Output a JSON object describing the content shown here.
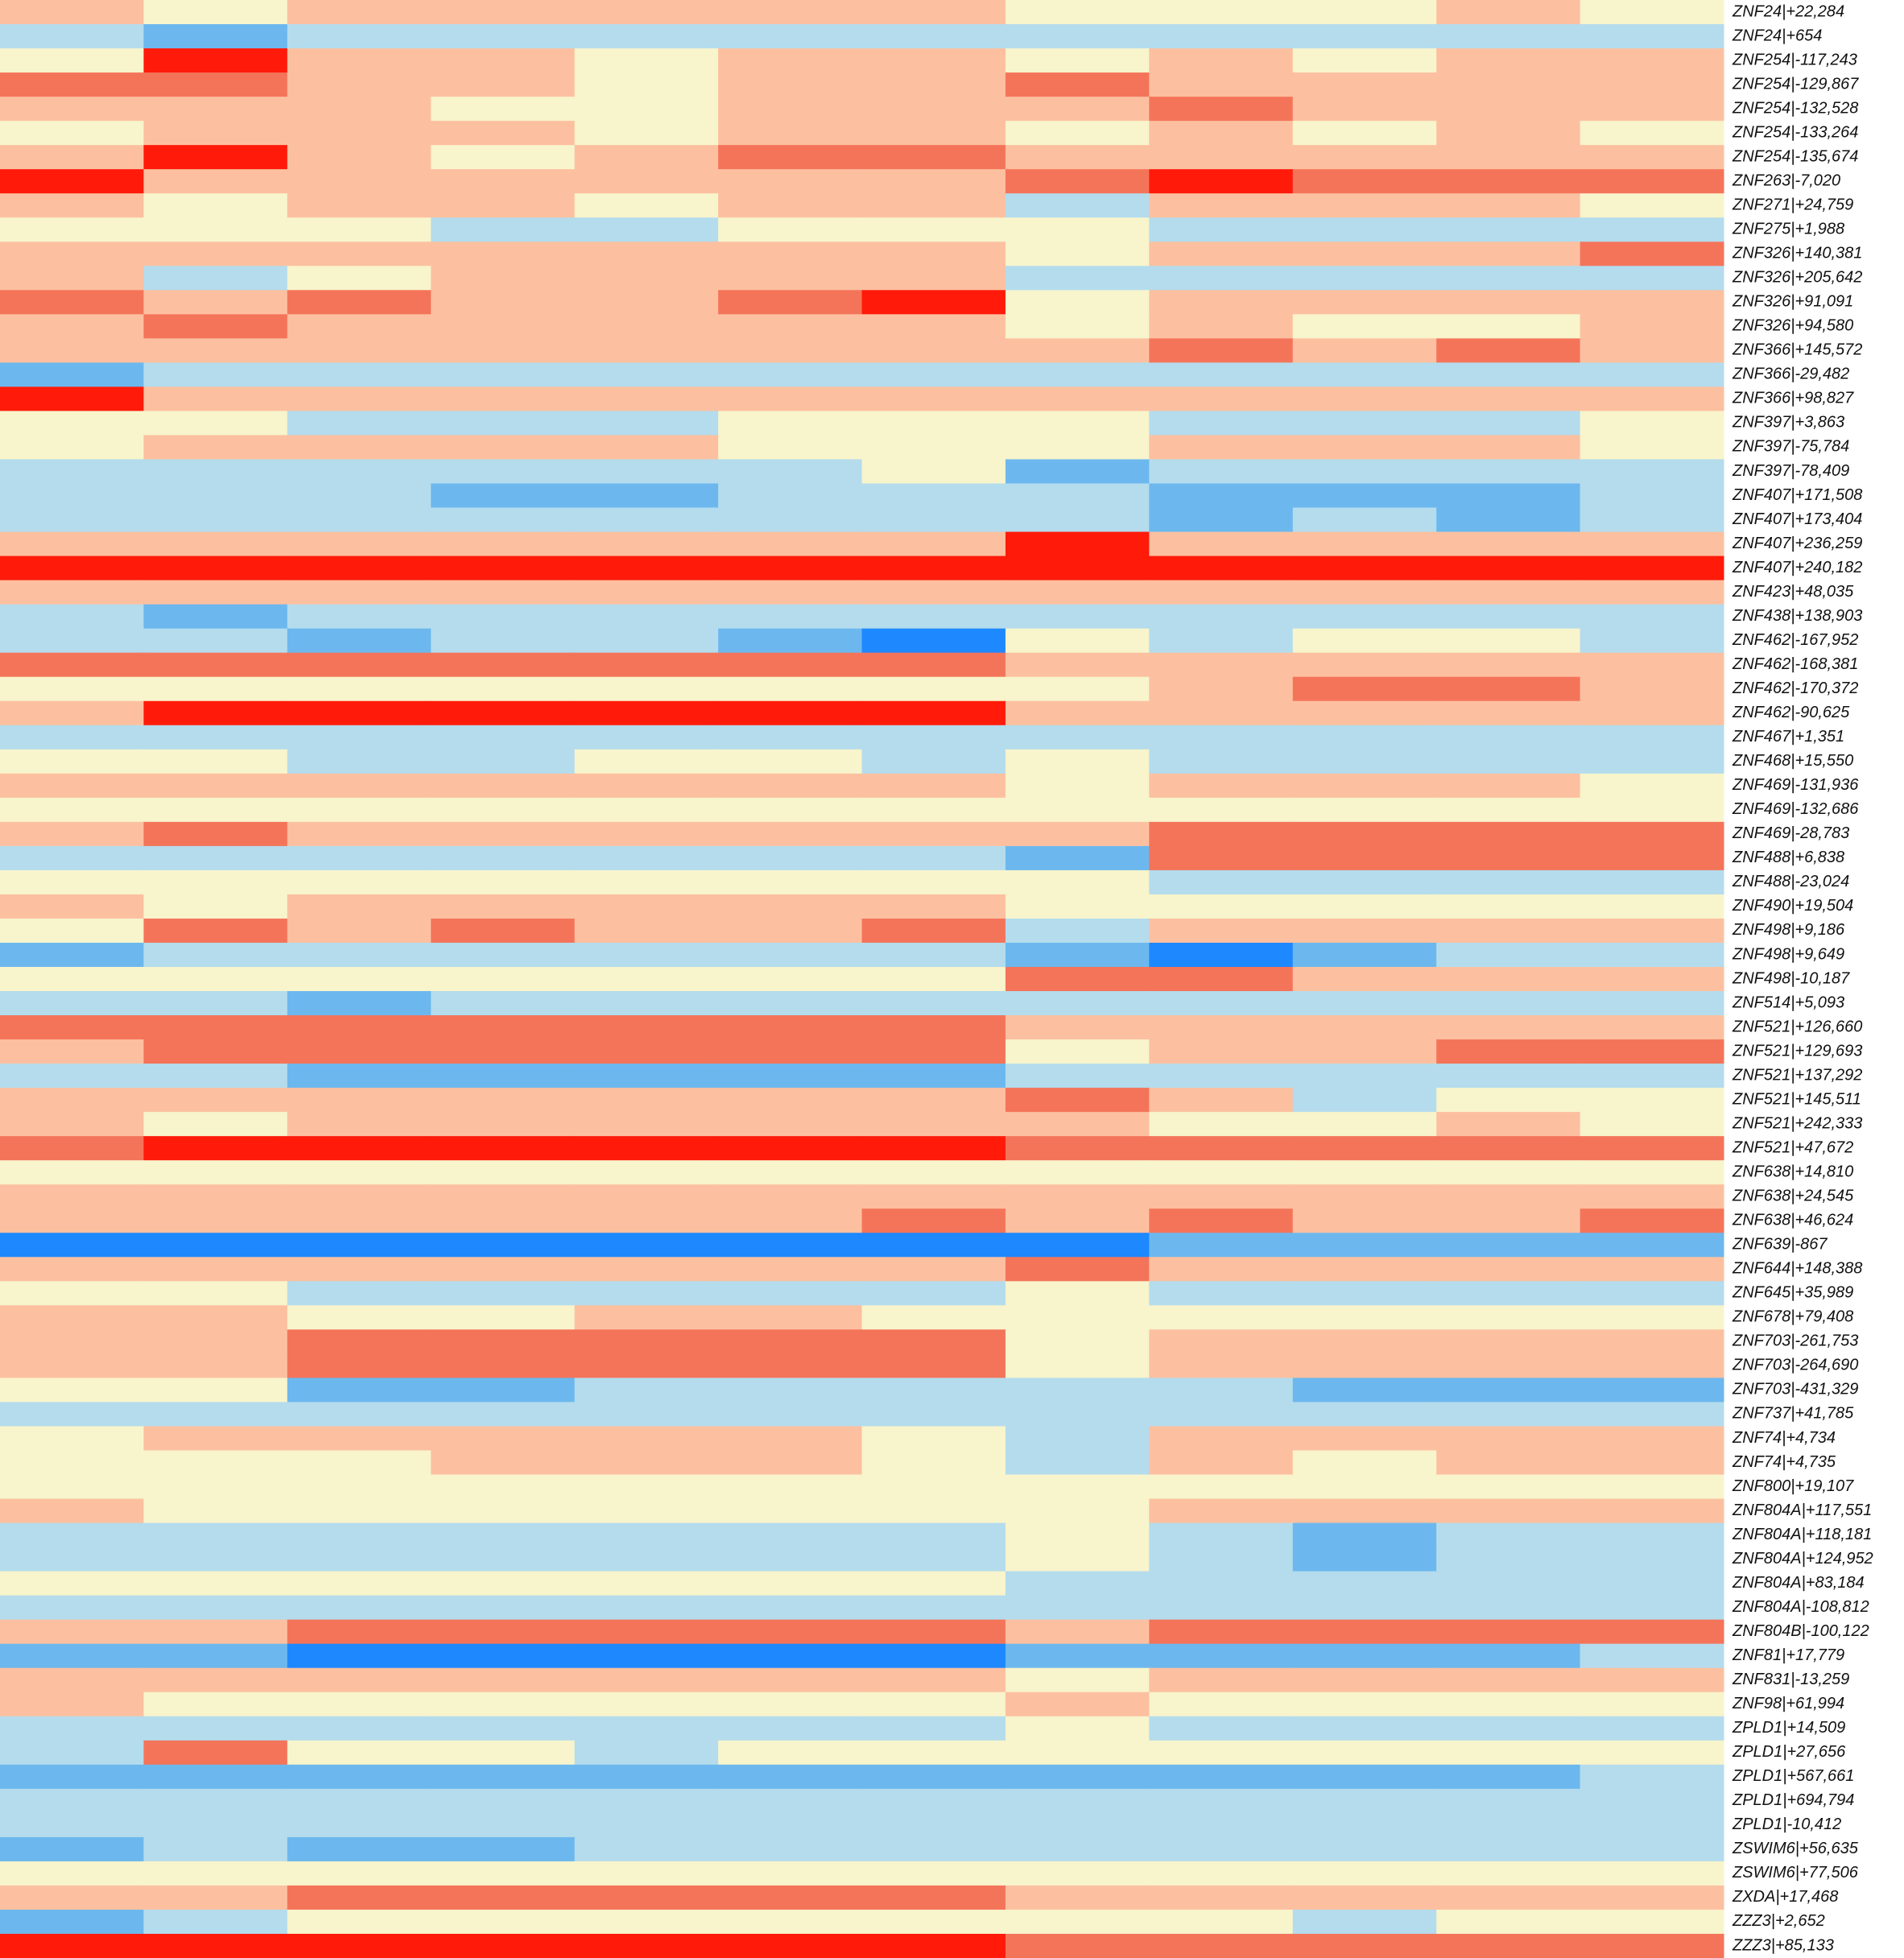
{
  "chart_data": {
    "type": "heatmap",
    "clim": [
      -3,
      3
    ],
    "colorscale": [
      "#1e88ff",
      "#6cb8ee",
      "#b4dced",
      "#f8f4cc",
      "#fcc0a0",
      "#f4745a",
      "#ff1a0a"
    ],
    "rows": [
      "ZNF24|+22,284",
      "ZNF24|+654",
      "ZNF254|-117,243",
      "ZNF254|-129,867",
      "ZNF254|-132,528",
      "ZNF254|-133,264",
      "ZNF254|-135,674",
      "ZNF263|-7,020",
      "ZNF271|+24,759",
      "ZNF275|+1,988",
      "ZNF326|+140,381",
      "ZNF326|+205,642",
      "ZNF326|+91,091",
      "ZNF326|+94,580",
      "ZNF366|+145,572",
      "ZNF366|-29,482",
      "ZNF366|+98,827",
      "ZNF397|+3,863",
      "ZNF397|-75,784",
      "ZNF397|-78,409",
      "ZNF407|+171,508",
      "ZNF407|+173,404",
      "ZNF407|+236,259",
      "ZNF407|+240,182",
      "ZNF423|+48,035",
      "ZNF438|+138,903",
      "ZNF462|-167,952",
      "ZNF462|-168,381",
      "ZNF462|-170,372",
      "ZNF462|-90,625",
      "ZNF467|+1,351",
      "ZNF468|+15,550",
      "ZNF469|-131,936",
      "ZNF469|-132,686",
      "ZNF469|-28,783",
      "ZNF488|+6,838",
      "ZNF488|-23,024",
      "ZNF490|+19,504",
      "ZNF498|+9,186",
      "ZNF498|+9,649",
      "ZNF498|-10,187",
      "ZNF514|+5,093",
      "ZNF521|+126,660",
      "ZNF521|+129,693",
      "ZNF521|+137,292",
      "ZNF521|+145,511",
      "ZNF521|+242,333",
      "ZNF521|+47,672",
      "ZNF638|+14,810",
      "ZNF638|+24,545",
      "ZNF638|+46,624",
      "ZNF639|-867",
      "ZNF644|+148,388",
      "ZNF645|+35,989",
      "ZNF678|+79,408",
      "ZNF703|-261,753",
      "ZNF703|-264,690",
      "ZNF703|-431,329",
      "ZNF737|+41,785",
      "ZNF74|+4,734",
      "ZNF74|+4,735",
      "ZNF800|+19,107",
      "ZNF804A|+117,551",
      "ZNF804A|+118,181",
      "ZNF804A|+124,952",
      "ZNF804A|+83,184",
      "ZNF804A|-108,812",
      "ZNF804B|-100,122",
      "ZNF81|+17,779",
      "ZNF831|-13,259",
      "ZNF98|+61,994",
      "ZPLD1|+14,509",
      "ZPLD1|+27,656",
      "ZPLD1|+567,661",
      "ZPLD1|+694,794",
      "ZPLD1|-10,412",
      "ZSWIM6|+56,635",
      "ZSWIM6|+77,506",
      "ZXDA|+17,468",
      "ZZZ3|+2,652",
      "ZZZ3|+85,133"
    ],
    "z": [
      [
        1,
        0,
        1,
        1,
        1,
        1,
        1,
        0,
        0,
        0,
        1,
        0
      ],
      [
        -1,
        -2,
        -1,
        -1,
        -1,
        -1,
        -1,
        -1,
        -1,
        -1,
        -1,
        -1
      ],
      [
        0,
        3,
        1,
        1,
        0,
        1,
        1,
        0,
        1,
        0,
        1,
        1
      ],
      [
        2,
        2,
        1,
        1,
        0,
        1,
        1,
        2,
        1,
        1,
        1,
        1
      ],
      [
        1,
        1,
        1,
        0,
        0,
        1,
        1,
        1,
        2,
        1,
        1,
        1
      ],
      [
        0,
        1,
        1,
        1,
        0,
        1,
        1,
        0,
        1,
        0,
        1,
        0
      ],
      [
        1,
        3,
        1,
        0,
        1,
        2,
        2,
        1,
        1,
        1,
        1,
        1
      ],
      [
        3,
        1,
        1,
        1,
        1,
        1,
        1,
        2,
        3,
        2,
        2,
        2
      ],
      [
        1,
        0,
        1,
        1,
        0,
        1,
        1,
        -1,
        1,
        1,
        1,
        0
      ],
      [
        0,
        0,
        0,
        -1,
        -1,
        0,
        0,
        0,
        -1,
        -1,
        -1,
        -1
      ],
      [
        1,
        1,
        1,
        1,
        1,
        1,
        1,
        0,
        1,
        1,
        1,
        2
      ],
      [
        1,
        -1,
        0,
        1,
        1,
        1,
        1,
        -1,
        -1,
        -1,
        -1,
        -1
      ],
      [
        2,
        1,
        2,
        1,
        1,
        2,
        3,
        0,
        1,
        1,
        1,
        1
      ],
      [
        1,
        2,
        1,
        1,
        1,
        1,
        1,
        0,
        1,
        0,
        0,
        1
      ],
      [
        1,
        1,
        1,
        1,
        1,
        1,
        1,
        1,
        2,
        1,
        2,
        1
      ],
      [
        -2,
        -1,
        -1,
        -1,
        -1,
        -1,
        -1,
        -1,
        -1,
        -1,
        -1,
        -1
      ],
      [
        3,
        1,
        1,
        1,
        1,
        1,
        1,
        1,
        1,
        1,
        1,
        1
      ],
      [
        0,
        0,
        -1,
        -1,
        -1,
        0,
        0,
        0,
        -1,
        -1,
        -1,
        0
      ],
      [
        0,
        1,
        1,
        1,
        1,
        0,
        0,
        0,
        1,
        1,
        1,
        0
      ],
      [
        -1,
        -1,
        -1,
        -1,
        -1,
        -1,
        0,
        -2,
        -1,
        -1,
        -1,
        -1
      ],
      [
        -1,
        -1,
        -1,
        -2,
        -2,
        -1,
        -1,
        -1,
        -2,
        -2,
        -2,
        -1
      ],
      [
        -1,
        -1,
        -1,
        -1,
        -1,
        -1,
        -1,
        -1,
        -2,
        -1,
        -2,
        -1
      ],
      [
        1,
        1,
        1,
        1,
        1,
        1,
        1,
        3,
        1,
        1,
        1,
        1
      ],
      [
        3,
        3,
        3,
        3,
        3,
        3,
        3,
        3,
        3,
        3,
        3,
        3
      ],
      [
        1,
        1,
        1,
        1,
        1,
        1,
        1,
        1,
        1,
        1,
        1,
        1
      ],
      [
        -1,
        -2,
        -1,
        -1,
        -1,
        -1,
        -1,
        -1,
        -1,
        -1,
        -1,
        -1
      ],
      [
        -1,
        -1,
        -2,
        -1,
        -1,
        -2,
        -3,
        0,
        -1,
        0,
        0,
        -1
      ],
      [
        2,
        2,
        2,
        2,
        2,
        2,
        2,
        1,
        1,
        1,
        1,
        1
      ],
      [
        0,
        0,
        0,
        0,
        0,
        0,
        0,
        0,
        1,
        2,
        2,
        1
      ],
      [
        1,
        3,
        3,
        3,
        3,
        3,
        3,
        1,
        1,
        1,
        1,
        1
      ],
      [
        -1,
        -1,
        -1,
        -1,
        -1,
        -1,
        -1,
        -1,
        -1,
        -1,
        -1,
        -1
      ],
      [
        0,
        0,
        -1,
        -1,
        0,
        0,
        -1,
        0,
        -1,
        -1,
        -1,
        -1
      ],
      [
        1,
        1,
        1,
        1,
        1,
        1,
        1,
        0,
        1,
        1,
        1,
        0
      ],
      [
        0,
        0,
        0,
        0,
        0,
        0,
        0,
        0,
        0,
        0,
        0,
        0
      ],
      [
        1,
        2,
        1,
        1,
        1,
        1,
        1,
        1,
        2,
        2,
        2,
        2
      ],
      [
        -1,
        -1,
        -1,
        -1,
        -1,
        -1,
        -1,
        -2,
        2,
        2,
        2,
        2
      ],
      [
        0,
        0,
        0,
        0,
        0,
        0,
        0,
        0,
        -1,
        -1,
        -1,
        -1
      ],
      [
        1,
        0,
        1,
        1,
        1,
        1,
        1,
        0,
        0,
        0,
        0,
        0
      ],
      [
        0,
        2,
        1,
        2,
        1,
        1,
        2,
        -1,
        1,
        1,
        1,
        1
      ],
      [
        -2,
        -1,
        -1,
        -1,
        -1,
        -1,
        -1,
        -2,
        -3,
        -2,
        -1,
        -1
      ],
      [
        0,
        0,
        0,
        0,
        0,
        0,
        0,
        2,
        2,
        1,
        1,
        1
      ],
      [
        -1,
        -1,
        -2,
        -1,
        -1,
        -1,
        -1,
        -1,
        -1,
        -1,
        -1,
        -1
      ],
      [
        2,
        2,
        2,
        2,
        2,
        2,
        2,
        1,
        1,
        1,
        1,
        1
      ],
      [
        1,
        2,
        2,
        2,
        2,
        2,
        2,
        0,
        1,
        1,
        2,
        2
      ],
      [
        -1,
        -1,
        -2,
        -2,
        -2,
        -2,
        -2,
        -1,
        -1,
        -1,
        -1,
        -1
      ],
      [
        1,
        1,
        1,
        1,
        1,
        1,
        1,
        2,
        1,
        -1,
        0,
        0
      ],
      [
        1,
        0,
        1,
        1,
        1,
        1,
        1,
        1,
        0,
        0,
        1,
        0
      ],
      [
        2,
        3,
        3,
        3,
        3,
        3,
        3,
        2,
        2,
        2,
        2,
        2
      ],
      [
        0,
        0,
        0,
        0,
        0,
        0,
        0,
        0,
        0,
        0,
        0,
        0
      ],
      [
        1,
        1,
        1,
        1,
        1,
        1,
        1,
        1,
        1,
        1,
        1,
        1
      ],
      [
        1,
        1,
        1,
        1,
        1,
        1,
        2,
        1,
        2,
        1,
        1,
        2
      ],
      [
        -3,
        -3,
        -3,
        -3,
        -3,
        -3,
        -3,
        -3,
        -2,
        -2,
        -2,
        -2
      ],
      [
        1,
        1,
        1,
        1,
        1,
        1,
        1,
        2,
        1,
        1,
        1,
        1
      ],
      [
        0,
        0,
        -1,
        -1,
        -1,
        -1,
        -1,
        0,
        -1,
        -1,
        -1,
        -1
      ],
      [
        1,
        1,
        0,
        0,
        1,
        1,
        0,
        0,
        0,
        0,
        0,
        0
      ],
      [
        1,
        1,
        2,
        2,
        2,
        2,
        2,
        0,
        1,
        1,
        1,
        1
      ],
      [
        1,
        1,
        2,
        2,
        2,
        2,
        2,
        0,
        1,
        1,
        1,
        1
      ],
      [
        0,
        0,
        -2,
        -2,
        -1,
        -1,
        -1,
        -1,
        -1,
        -2,
        -2,
        -2
      ],
      [
        -1,
        -1,
        -1,
        -1,
        -1,
        -1,
        -1,
        -1,
        -1,
        -1,
        -1,
        -1
      ],
      [
        0,
        1,
        1,
        1,
        1,
        1,
        0,
        -1,
        1,
        1,
        1,
        1
      ],
      [
        0,
        0,
        0,
        1,
        1,
        1,
        0,
        -1,
        1,
        0,
        1,
        1
      ],
      [
        0,
        0,
        0,
        0,
        0,
        0,
        0,
        0,
        0,
        0,
        0,
        0
      ],
      [
        1,
        0,
        0,
        0,
        0,
        0,
        0,
        0,
        1,
        1,
        1,
        1
      ],
      [
        -1,
        -1,
        -1,
        -1,
        -1,
        -1,
        -1,
        0,
        -1,
        -2,
        -1,
        -1
      ],
      [
        -1,
        -1,
        -1,
        -1,
        -1,
        -1,
        -1,
        0,
        -1,
        -2,
        -1,
        -1
      ],
      [
        0,
        0,
        0,
        0,
        0,
        0,
        0,
        -1,
        -1,
        -1,
        -1,
        -1
      ],
      [
        -1,
        -1,
        -1,
        -1,
        -1,
        -1,
        -1,
        -1,
        -1,
        -1,
        -1,
        -1
      ],
      [
        1,
        1,
        2,
        2,
        2,
        2,
        2,
        1,
        2,
        2,
        2,
        2
      ],
      [
        -2,
        -2,
        -3,
        -3,
        -3,
        -3,
        -3,
        -2,
        -2,
        -2,
        -2,
        -1
      ],
      [
        1,
        1,
        1,
        1,
        1,
        1,
        1,
        0,
        1,
        1,
        1,
        1
      ],
      [
        1,
        0,
        0,
        0,
        0,
        0,
        0,
        1,
        0,
        0,
        0,
        0
      ],
      [
        -1,
        -1,
        -1,
        -1,
        -1,
        -1,
        -1,
        0,
        -1,
        -1,
        -1,
        -1
      ],
      [
        -1,
        2,
        0,
        0,
        -1,
        0,
        0,
        0,
        0,
        0,
        0,
        0
      ],
      [
        -2,
        -2,
        -2,
        -2,
        -2,
        -2,
        -2,
        -2,
        -2,
        -2,
        -2,
        -1
      ],
      [
        -1,
        -1,
        -1,
        -1,
        -1,
        -1,
        -1,
        -1,
        -1,
        -1,
        -1,
        -1
      ],
      [
        -1,
        -1,
        -1,
        -1,
        -1,
        -1,
        -1,
        -1,
        -1,
        -1,
        -1,
        -1
      ],
      [
        -2,
        -1,
        -2,
        -2,
        -1,
        -1,
        -1,
        -1,
        -1,
        -1,
        -1,
        -1
      ],
      [
        0,
        0,
        0,
        0,
        0,
        0,
        0,
        0,
        0,
        0,
        0,
        0
      ],
      [
        1,
        1,
        2,
        2,
        2,
        2,
        2,
        1,
        1,
        1,
        1,
        1
      ],
      [
        -2,
        -1,
        0,
        0,
        0,
        0,
        0,
        0,
        0,
        -1,
        0,
        0
      ],
      [
        3,
        3,
        3,
        3,
        3,
        3,
        3,
        2,
        2,
        2,
        2,
        2
      ]
    ]
  }
}
